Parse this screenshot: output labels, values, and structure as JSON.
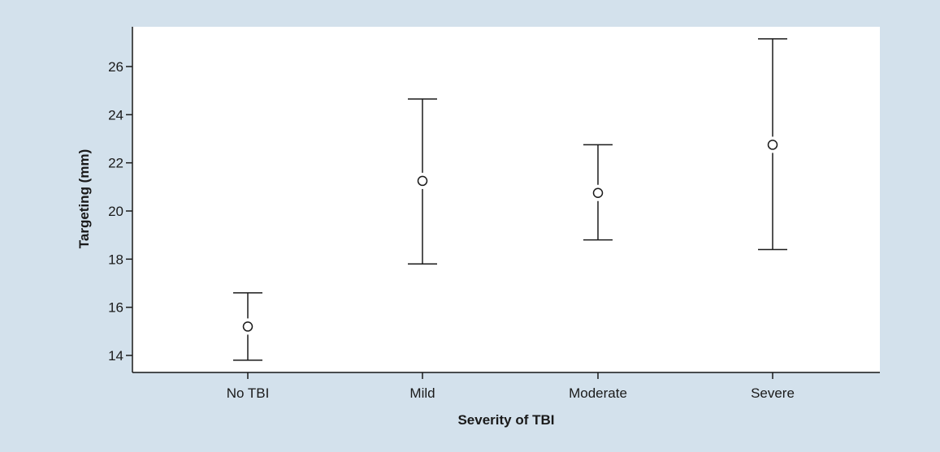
{
  "chart_data": {
    "type": "errorbar",
    "title": "",
    "xlabel": "Severity of TBI",
    "ylabel": "Targeting (mm)",
    "categories": [
      "No TBI",
      "Mild",
      "Moderate",
      "Severe"
    ],
    "series": [
      {
        "mean": [
          15.2,
          21.25,
          20.75,
          22.75
        ],
        "lower": [
          13.8,
          17.8,
          18.8,
          18.4
        ],
        "upper": [
          16.6,
          24.65,
          22.75,
          27.15
        ]
      }
    ],
    "y_ticks": [
      14,
      16,
      18,
      20,
      22,
      24,
      26
    ],
    "ylim": [
      13.3,
      27.5
    ],
    "grid": false,
    "colors": {
      "background": "#d3e1ec",
      "plot_area": "#ffffff",
      "ink": "#1a1a1a"
    }
  }
}
